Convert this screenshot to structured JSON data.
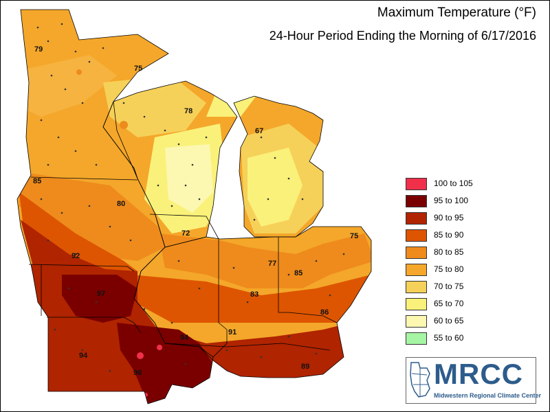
{
  "title": "Maximum Temperature (°F)",
  "subtitle": "24-Hour Period Ending the Morning of 6/17/2016",
  "legend": [
    {
      "label": "100 to 105",
      "color": "#f0304a"
    },
    {
      "label": "95 to 100",
      "color": "#7a0000"
    },
    {
      "label": "90 to 95",
      "color": "#b02400"
    },
    {
      "label": "85 to 90",
      "color": "#dd5500"
    },
    {
      "label": "80 to 85",
      "color": "#ee8b1c"
    },
    {
      "label": "75 to 80",
      "color": "#f4a72a"
    },
    {
      "label": "70 to 75",
      "color": "#f6d159"
    },
    {
      "label": "65 to 70",
      "color": "#faf17a"
    },
    {
      "label": "60 to 65",
      "color": "#fcf8b2"
    },
    {
      "label": "55 to 60",
      "color": "#a6f5a4"
    }
  ],
  "map_labels": [
    "79",
    "75",
    "78",
    "67",
    "85",
    "80",
    "72",
    "75",
    "92",
    "77",
    "85",
    "97",
    "83",
    "86",
    "94",
    "91",
    "94",
    "89",
    "96"
  ],
  "logo": {
    "text": "MRCC",
    "subtitle": "Midwestern Regional Climate Center"
  }
}
